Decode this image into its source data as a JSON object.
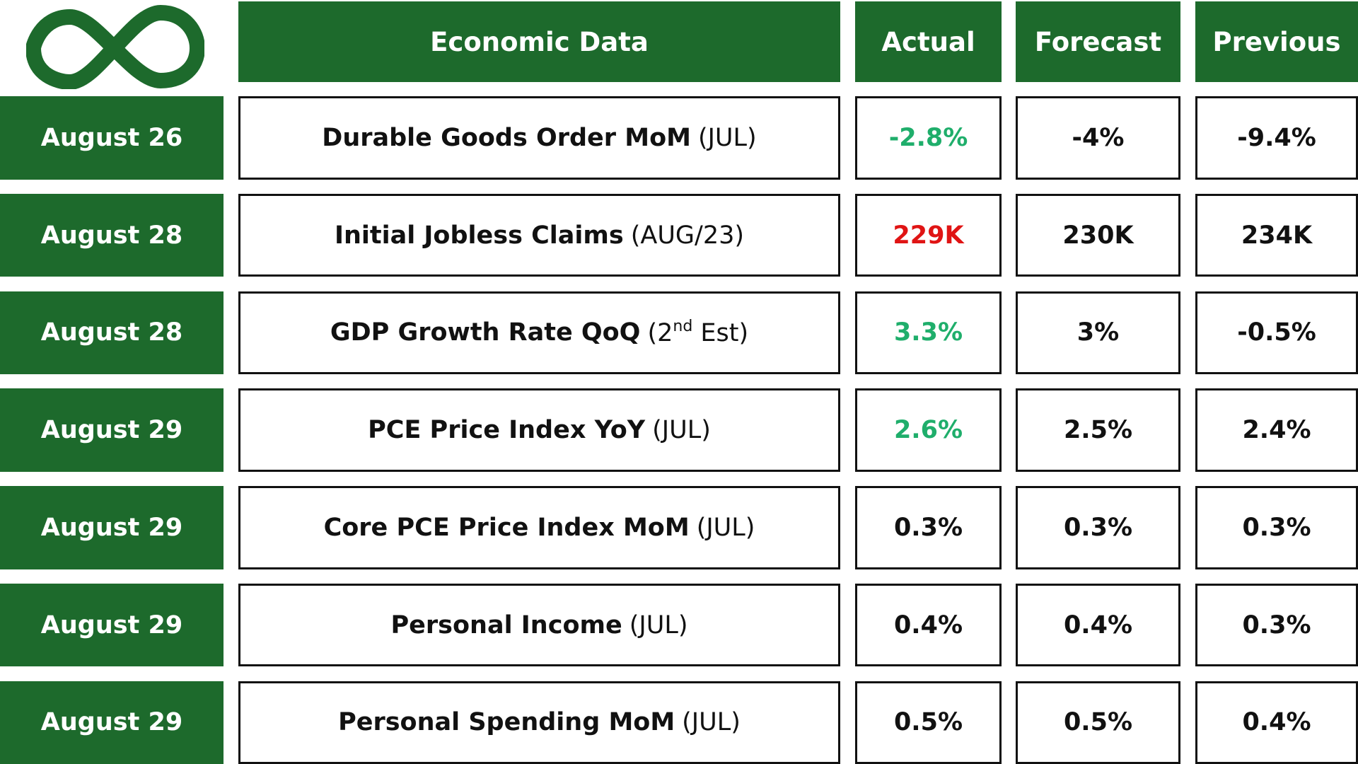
{
  "header": {
    "columns": [
      "Economic Data",
      "Actual",
      "Forecast",
      "Previous"
    ]
  },
  "table": {
    "rows": [
      {
        "date": "August 26",
        "name": "Durable Goods Order MoM",
        "period": "(JUL)",
        "actual": "-2.8%",
        "actual_color": "#1fae6b",
        "forecast": "-4%",
        "previous": "-9.4%"
      },
      {
        "date": "August 28",
        "name": "Initial Jobless Claims",
        "period": "(AUG/23)",
        "actual": "229K",
        "actual_color": "#e01414",
        "forecast": "230K",
        "previous": "234K"
      },
      {
        "date": "August 28",
        "name": "GDP Growth Rate QoQ",
        "period": {
          "text": "(2",
          "sup": "nd",
          "tail": " Est)"
        },
        "actual": "3.3%",
        "actual_color": "#1fae6b",
        "forecast": "3%",
        "previous": "-0.5%"
      },
      {
        "date": "August 29",
        "name": "PCE Price Index YoY",
        "period": "(JUL)",
        "actual": "2.6%",
        "actual_color": "#1fae6b",
        "forecast": "2.5%",
        "previous": "2.4%"
      },
      {
        "date": "August 29",
        "name": "Core PCE Price Index MoM",
        "period": "(JUL)",
        "actual": "0.3%",
        "forecast": "0.3%",
        "previous": "0.3%"
      },
      {
        "date": "August 29",
        "name": "Personal Income",
        "period": "(JUL)",
        "actual": "0.4%",
        "forecast": "0.4%",
        "previous": "0.3%"
      },
      {
        "date": "August 29",
        "name": "Personal Spending MoM",
        "period": "(JUL)",
        "actual": "0.5%",
        "forecast": "0.5%",
        "previous": "0.4%"
      }
    ]
  }
}
